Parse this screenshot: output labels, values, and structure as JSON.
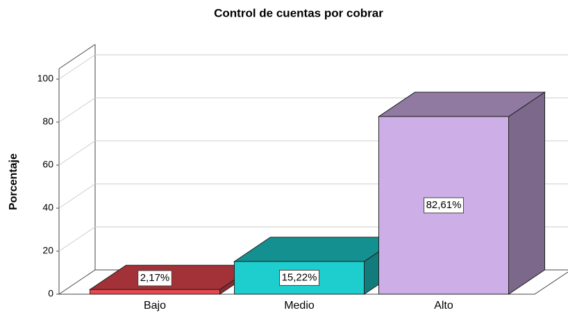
{
  "chart_data": {
    "type": "bar3d",
    "title": "Control de cuentas por cobrar",
    "ylabel": "Porcentaje",
    "categories": [
      "Bajo",
      "Medio",
      "Alto"
    ],
    "values": [
      2.17,
      15.22,
      82.61
    ],
    "value_labels": [
      "2,17%",
      "15,22%",
      "82,61%"
    ],
    "colors": [
      "#e8484f",
      "#1ecdcd",
      "#cdaee6"
    ],
    "ylim": [
      0,
      100
    ],
    "yticks": [
      0,
      20,
      40,
      60,
      80,
      100
    ],
    "grid": true
  }
}
